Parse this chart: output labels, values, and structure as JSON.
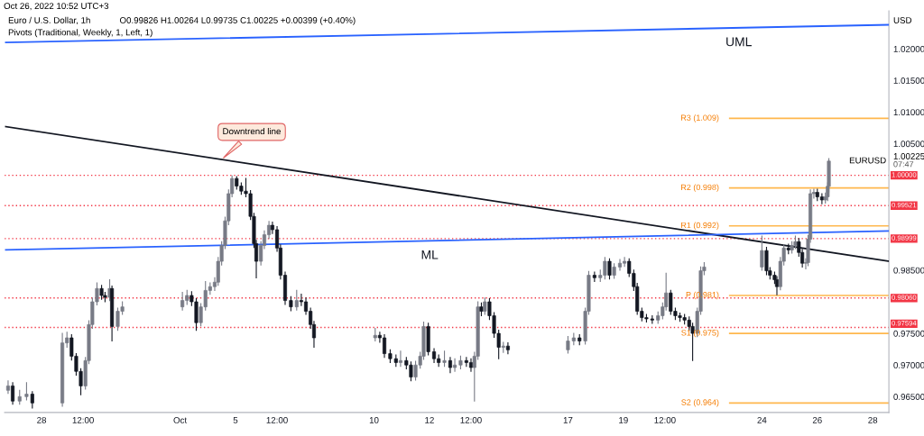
{
  "chart_data": {
    "type": "candlestick",
    "title": "Euro / U.S. Dollar, 1h",
    "subtitle": "Pivots (Traditional, Weekly, 1, Left, 1)",
    "ylabel": "USD",
    "annotations": [
      "Oct 26, 2022 10:52 UTC+3",
      "O0.99826 H1.00264 L0.99735 C1.00225 +0.00399 (+0.40%)",
      "EURUSD",
      "1.00225",
      "07:47",
      {
        "text": "Downtrend line",
        "x": "2022-10-04T12:00",
        "y": 1.0025
      }
    ],
    "x": [
      "2022-09-26T19:00",
      "2022-09-26T23:00",
      "2022-09-27T05:00",
      "2022-09-27T11:00",
      "2022-09-27T16:00",
      "2022-09-28T18:00",
      "2022-09-28T22:00",
      "2022-09-29T02:00",
      "2022-09-29T06:00",
      "2022-09-29T10:00",
      "2022-09-29T14:00",
      "2022-09-29T17:00",
      "2022-09-29T20:00",
      "2022-09-30T00:00",
      "2022-09-30T04:00",
      "2022-09-30T07:00",
      "2022-09-30T11:00",
      "2022-09-30T13:00",
      "2022-09-30T18:00",
      "2022-09-30T22:00",
      "2022-10-03T02:00",
      "2022-10-03T06:00",
      "2022-10-03T10:00",
      "2022-10-03T14:00",
      "2022-10-03T18:00",
      "2022-10-03T22:00",
      "2022-10-04T02:00",
      "2022-10-04T06:00",
      "2022-10-04T09:00",
      "2022-10-04T12:00",
      "2022-10-04T15:00",
      "2022-10-04T18:00",
      "2022-10-04T21:00",
      "2022-10-05T01:00",
      "2022-10-05T05:00",
      "2022-10-05T09:00",
      "2022-10-05T13:00",
      "2022-10-05T16:00",
      "2022-10-05T18:00",
      "2022-10-05T22:00",
      "2022-10-06T01:00",
      "2022-10-06T05:00",
      "2022-10-06T08:00",
      "2022-10-06T12:00",
      "2022-10-06T15:00",
      "2022-10-06T19:00",
      "2022-10-07T00:00",
      "2022-10-07T05:00",
      "2022-10-07T09:00",
      "2022-10-07T13:00",
      "2022-10-07T17:00",
      "2022-10-07T20:00",
      "2022-10-10T01:00",
      "2022-10-10T05:00",
      "2022-10-10T09:00",
      "2022-10-10T14:00",
      "2022-10-10T19:00",
      "2022-10-10T23:00",
      "2022-10-11T04:00",
      "2022-10-11T08:00",
      "2022-10-11T12:00",
      "2022-10-11T16:00",
      "2022-10-11T19:00",
      "2022-10-11T23:00",
      "2022-10-12T04:00",
      "2022-10-12T08:00",
      "2022-10-12T13:00",
      "2022-10-12T18:00",
      "2022-10-12T22:00",
      "2022-10-13T03:00",
      "2022-10-13T08:00",
      "2022-10-13T12:00",
      "2022-10-13T15:00",
      "2022-10-13T18:00",
      "2022-10-13T21:00",
      "2022-10-14T00:00",
      "2022-10-14T04:00",
      "2022-10-14T08:00",
      "2022-10-14T12:00",
      "2022-10-14T16:00",
      "2022-10-14T20:00",
      "2022-10-17T00:00",
      "2022-10-17T05:00",
      "2022-10-17T10:00",
      "2022-10-17T15:00",
      "2022-10-17T18:00",
      "2022-10-17T23:00",
      "2022-10-18T04:00",
      "2022-10-18T08:00",
      "2022-10-18T12:00",
      "2022-10-18T16:00",
      "2022-10-18T21:00",
      "2022-10-19T01:00",
      "2022-10-19T05:00",
      "2022-10-19T09:00",
      "2022-10-19T12:00",
      "2022-10-19T16:00",
      "2022-10-19T20:00",
      "2022-10-20T01:00",
      "2022-10-20T06:00",
      "2022-10-20T10:00",
      "2022-10-20T13:00",
      "2022-10-20T17:00",
      "2022-10-20T21:00",
      "2022-10-21T01:00",
      "2022-10-21T05:00",
      "2022-10-21T09:00",
      "2022-10-21T12:00",
      "2022-10-21T16:00",
      "2022-10-21T19:00",
      "2022-10-21T22:00",
      "2022-10-24T00:00",
      "2022-10-24T04:00",
      "2022-10-24T07:00",
      "2022-10-24T11:00",
      "2022-10-24T13:00",
      "2022-10-24T16:00",
      "2022-10-24T19:00",
      "2022-10-24T23:00",
      "2022-10-25T02:00",
      "2022-10-25T05:00",
      "2022-10-25T08:00",
      "2022-10-25T11:00",
      "2022-10-25T14:00",
      "2022-10-25T16:00",
      "2022-10-25T18:00",
      "2022-10-25T21:00",
      "2022-10-26T00:00",
      "2022-10-26T04:00",
      "2022-10-26T07:00",
      "2022-10-26T09:00",
      "2022-10-26T10:00"
    ],
    "ohlc": [
      [
        0.966,
        0.9675,
        0.9655,
        0.9667
      ],
      [
        0.9667,
        0.9672,
        0.9638,
        0.9643
      ],
      [
        0.9643,
        0.966,
        0.9638,
        0.965
      ],
      [
        0.965,
        0.9672,
        0.9645,
        0.9654
      ],
      [
        0.9654,
        0.9658,
        0.9632,
        0.964
      ],
      [
        0.964,
        0.975,
        0.9635,
        0.9735
      ],
      [
        0.9735,
        0.9752,
        0.9728,
        0.9743
      ],
      [
        0.9743,
        0.9748,
        0.9708,
        0.9714
      ],
      [
        0.9714,
        0.9718,
        0.9684,
        0.969
      ],
      [
        0.969,
        0.9694,
        0.9653,
        0.9667
      ],
      [
        0.9667,
        0.9712,
        0.9662,
        0.9707
      ],
      [
        0.9707,
        0.977,
        0.9702,
        0.9764
      ],
      [
        0.9764,
        0.9806,
        0.9758,
        0.98
      ],
      [
        0.98,
        0.983,
        0.9795,
        0.9821
      ],
      [
        0.9821,
        0.9826,
        0.9804,
        0.981
      ],
      [
        0.981,
        0.9815,
        0.98,
        0.9807
      ],
      [
        0.9807,
        0.9835,
        0.9802,
        0.9821
      ],
      [
        0.9821,
        0.9825,
        0.9738,
        0.9761
      ],
      [
        0.9761,
        0.979,
        0.9755,
        0.9785
      ],
      [
        0.9785,
        0.98,
        0.978,
        0.9792
      ],
      [
        0.9792,
        0.9815,
        0.9787,
        0.9802
      ],
      [
        0.9802,
        0.9818,
        0.9796,
        0.981
      ],
      [
        0.981,
        0.9816,
        0.9794,
        0.98
      ],
      [
        0.98,
        0.9805,
        0.9755,
        0.9767
      ],
      [
        0.9767,
        0.9797,
        0.9762,
        0.9792
      ],
      [
        0.9792,
        0.9832,
        0.9787,
        0.9818
      ],
      [
        0.9818,
        0.983,
        0.9812,
        0.9824
      ],
      [
        0.9824,
        0.9838,
        0.9818,
        0.9831
      ],
      [
        0.9831,
        0.987,
        0.9826,
        0.9864
      ],
      [
        0.9864,
        0.9895,
        0.9858,
        0.9889
      ],
      [
        0.9889,
        0.9934,
        0.9884,
        0.9928
      ],
      [
        0.9928,
        0.9977,
        0.9922,
        0.9971
      ],
      [
        0.9971,
        0.9999,
        0.9966,
        0.9995
      ],
      [
        0.9995,
        0.9998,
        0.9978,
        0.9983
      ],
      [
        0.9983,
        0.9988,
        0.997,
        0.9975
      ],
      [
        0.9975,
        0.9995,
        0.9966,
        0.9971
      ],
      [
        0.9971,
        0.9976,
        0.993,
        0.9935
      ],
      [
        0.9935,
        0.994,
        0.9886,
        0.9892
      ],
      [
        0.9892,
        0.9897,
        0.9838,
        0.9864
      ],
      [
        0.9864,
        0.9895,
        0.9858,
        0.9889
      ],
      [
        0.9889,
        0.9912,
        0.9884,
        0.9906
      ],
      [
        0.9906,
        0.9927,
        0.99,
        0.9921
      ],
      [
        0.9921,
        0.9926,
        0.9908,
        0.9914
      ],
      [
        0.9914,
        0.9919,
        0.988,
        0.9885
      ],
      [
        0.9885,
        0.989,
        0.9836,
        0.9842
      ],
      [
        0.9842,
        0.9847,
        0.9796,
        0.9802
      ],
      [
        0.9802,
        0.9808,
        0.9786,
        0.9792
      ],
      [
        0.9792,
        0.9818,
        0.9787,
        0.9802
      ],
      [
        0.9802,
        0.9812,
        0.9794,
        0.98
      ],
      [
        0.98,
        0.9806,
        0.978,
        0.9785
      ],
      [
        0.9785,
        0.979,
        0.9758,
        0.9764
      ],
      [
        0.9764,
        0.9769,
        0.9728,
        0.9743
      ],
      [
        0.9743,
        0.9758,
        0.9738,
        0.9747
      ],
      [
        0.9747,
        0.9752,
        0.9736,
        0.9743
      ],
      [
        0.9743,
        0.9748,
        0.9712,
        0.9718
      ],
      [
        0.9718,
        0.9724,
        0.9704,
        0.971
      ],
      [
        0.971,
        0.9716,
        0.9698,
        0.9704
      ],
      [
        0.9704,
        0.9722,
        0.9698,
        0.9707
      ],
      [
        0.9707,
        0.9712,
        0.9694,
        0.97
      ],
      [
        0.97,
        0.9705,
        0.9675,
        0.9681
      ],
      [
        0.9681,
        0.9706,
        0.9676,
        0.97
      ],
      [
        0.97,
        0.972,
        0.9695,
        0.9714
      ],
      [
        0.9714,
        0.9768,
        0.9709,
        0.9761
      ],
      [
        0.9761,
        0.9766,
        0.9716,
        0.9721
      ],
      [
        0.9721,
        0.9726,
        0.9704,
        0.971
      ],
      [
        0.971,
        0.9716,
        0.9698,
        0.9704
      ],
      [
        0.9704,
        0.9722,
        0.9698,
        0.9707
      ],
      [
        0.9707,
        0.9712,
        0.9688,
        0.9696
      ],
      [
        0.9696,
        0.971,
        0.969,
        0.97
      ],
      [
        0.97,
        0.9714,
        0.9694,
        0.9707
      ],
      [
        0.9707,
        0.9712,
        0.9698,
        0.9704
      ],
      [
        0.9704,
        0.971,
        0.969,
        0.9696
      ],
      [
        0.9696,
        0.972,
        0.9643,
        0.9714
      ],
      [
        0.9714,
        0.98,
        0.9709,
        0.9792
      ],
      [
        0.9792,
        0.9798,
        0.9778,
        0.9785
      ],
      [
        0.9785,
        0.9806,
        0.978,
        0.98
      ],
      [
        0.98,
        0.9805,
        0.9772,
        0.9778
      ],
      [
        0.9778,
        0.9783,
        0.9744,
        0.975
      ],
      [
        0.975,
        0.9755,
        0.971,
        0.9728
      ],
      [
        0.9728,
        0.9736,
        0.972,
        0.973
      ],
      [
        0.973,
        0.9735,
        0.9718,
        0.9724
      ],
      [
        0.9724,
        0.9745,
        0.9719,
        0.9738
      ],
      [
        0.9738,
        0.975,
        0.9732,
        0.9743
      ],
      [
        0.9743,
        0.9748,
        0.9732,
        0.9738
      ],
      [
        0.9738,
        0.979,
        0.9733,
        0.9785
      ],
      [
        0.9785,
        0.9848,
        0.978,
        0.9842
      ],
      [
        0.9842,
        0.9847,
        0.9832,
        0.9838
      ],
      [
        0.9838,
        0.985,
        0.9832,
        0.9842
      ],
      [
        0.9842,
        0.987,
        0.9836,
        0.9864
      ],
      [
        0.9864,
        0.9868,
        0.9836,
        0.9842
      ],
      [
        0.9842,
        0.986,
        0.9837,
        0.9855
      ],
      [
        0.9855,
        0.9867,
        0.985,
        0.9861
      ],
      [
        0.9861,
        0.987,
        0.9856,
        0.9864
      ],
      [
        0.9864,
        0.9868,
        0.984,
        0.9845
      ],
      [
        0.9845,
        0.985,
        0.9818,
        0.9824
      ],
      [
        0.9824,
        0.9829,
        0.978,
        0.9785
      ],
      [
        0.9785,
        0.979,
        0.977,
        0.9775
      ],
      [
        0.9775,
        0.978,
        0.9768,
        0.9773
      ],
      [
        0.9773,
        0.9778,
        0.9766,
        0.9771
      ],
      [
        0.9771,
        0.9784,
        0.9766,
        0.9778
      ],
      [
        0.9778,
        0.9798,
        0.9773,
        0.9792
      ],
      [
        0.9792,
        0.9845,
        0.9787,
        0.9814
      ],
      [
        0.9814,
        0.9818,
        0.978,
        0.9785
      ],
      [
        0.9785,
        0.979,
        0.9772,
        0.9778
      ],
      [
        0.9778,
        0.9782,
        0.9769,
        0.9775
      ],
      [
        0.9775,
        0.978,
        0.9765,
        0.9771
      ],
      [
        0.9771,
        0.9776,
        0.9755,
        0.9761
      ],
      [
        0.9761,
        0.9766,
        0.9707,
        0.975
      ],
      [
        0.975,
        0.979,
        0.9745,
        0.9785
      ],
      [
        0.9785,
        0.9855,
        0.978,
        0.9849
      ],
      [
        0.9849,
        0.9862,
        0.9843,
        0.9855
      ],
      [
        0.9855,
        0.9904,
        0.985,
        0.9881
      ],
      [
        0.9881,
        0.9886,
        0.9843,
        0.9849
      ],
      [
        0.9849,
        0.9854,
        0.9836,
        0.9842
      ],
      [
        0.9842,
        0.9847,
        0.9829,
        0.9835
      ],
      [
        0.9835,
        0.984,
        0.9811,
        0.9824
      ],
      [
        0.9824,
        0.987,
        0.9819,
        0.9864
      ],
      [
        0.9864,
        0.989,
        0.9858,
        0.9885
      ],
      [
        0.9885,
        0.9891,
        0.9876,
        0.9882
      ],
      [
        0.9882,
        0.9895,
        0.9877,
        0.9889
      ],
      [
        0.9889,
        0.9904,
        0.9884,
        0.9895
      ],
      [
        0.9895,
        0.99,
        0.9872,
        0.9878
      ],
      [
        0.9878,
        0.9883,
        0.9855,
        0.9861
      ],
      [
        0.9861,
        0.9868,
        0.9852,
        0.9862
      ],
      [
        0.9862,
        0.9905,
        0.9857,
        0.9899
      ],
      [
        0.9899,
        0.9977,
        0.9894,
        0.9971
      ],
      [
        0.9971,
        0.9978,
        0.9964,
        0.9973
      ],
      [
        0.9973,
        0.9978,
        0.996,
        0.9966
      ],
      [
        0.9966,
        0.9971,
        0.9955,
        0.9961
      ],
      [
        0.9961,
        0.9972,
        0.9956,
        0.9966
      ],
      [
        0.9966,
        0.9988,
        0.996,
        0.99826
      ],
      [
        0.99826,
        1.00264,
        0.99735,
        1.00225
      ]
    ],
    "colors": [
      "#787b86",
      "#131722",
      "#787b86",
      "#787b86",
      "#131722",
      "#787b86",
      "#787b86",
      "#131722",
      "#131722",
      "#131722",
      "#787b86",
      "#787b86",
      "#787b86",
      "#787b86",
      "#131722",
      "#131722",
      "#787b86",
      "#131722",
      "#787b86",
      "#787b86",
      "#787b86",
      "#787b86",
      "#131722",
      "#131722",
      "#787b86",
      "#787b86",
      "#787b86",
      "#787b86",
      "#787b86",
      "#787b86",
      "#787b86",
      "#787b86",
      "#787b86",
      "#131722",
      "#131722",
      "#131722",
      "#131722",
      "#131722",
      "#131722",
      "#787b86",
      "#787b86",
      "#787b86",
      "#131722",
      "#131722",
      "#131722",
      "#131722",
      "#131722",
      "#787b86",
      "#131722",
      "#131722",
      "#131722",
      "#131722",
      "#787b86",
      "#131722",
      "#131722",
      "#131722",
      "#131722",
      "#787b86",
      "#131722",
      "#131722",
      "#787b86",
      "#787b86",
      "#787b86",
      "#131722",
      "#131722",
      "#131722",
      "#787b86",
      "#131722",
      "#787b86",
      "#787b86",
      "#131722",
      "#131722",
      "#787b86",
      "#787b86",
      "#131722",
      "#787b86",
      "#131722",
      "#131722",
      "#131722",
      "#787b86",
      "#131722",
      "#787b86",
      "#787b86",
      "#131722",
      "#787b86",
      "#787b86",
      "#131722",
      "#787b86",
      "#787b86",
      "#131722",
      "#787b86",
      "#787b86",
      "#787b86",
      "#131722",
      "#131722",
      "#131722",
      "#131722",
      "#131722",
      "#131722",
      "#787b86",
      "#787b86",
      "#787b86",
      "#131722",
      "#131722",
      "#131722",
      "#131722",
      "#131722",
      "#131722",
      "#787b86",
      "#787b86",
      "#787b86",
      "#787b86",
      "#131722",
      "#131722",
      "#131722",
      "#131722",
      "#787b86",
      "#787b86",
      "#131722",
      "#787b86",
      "#787b86",
      "#131722",
      "#131722",
      "#787b86",
      "#787b86",
      "#787b86",
      "#787b86",
      "#131722",
      "#131722",
      "#787b86",
      "#787b86",
      "#787b86"
    ],
    "series": [
      {
        "type": "line",
        "color": "#131722",
        "x": [
          "2022-09-26T17:00",
          "2022-10-28T14:00"
        ],
        "values": [
          1.0077,
          0.9864
        ]
      },
      {
        "type": "line",
        "name": "ML",
        "color": "#2962ff",
        "x": [
          "2022-09-26T17:00",
          "2022-10-28T14:00"
        ],
        "values": [
          0.9882,
          0.9912
        ]
      },
      {
        "type": "line",
        "name": "UML",
        "color": "#2962ff",
        "x": [
          "2022-09-26T17:00",
          "2022-10-28T14:00"
        ],
        "values": [
          1.021,
          1.0238
        ]
      }
    ],
    "xlim": [
      "2022-09-26T16:00",
      "2022-10-28T14:00"
    ],
    "xticks": [
      {
        "value": "2022-09-28",
        "label": "28"
      },
      {
        "value": "2022-09-29T12:00",
        "label": "12:00"
      },
      {
        "value": "2022-10-03",
        "label": "Oct"
      },
      {
        "value": "2022-10-05",
        "label": "5"
      },
      {
        "value": "2022-10-06T12:00",
        "label": "12:00"
      },
      {
        "value": "2022-10-10",
        "label": "10"
      },
      {
        "value": "2022-10-12",
        "label": "12"
      },
      {
        "value": "2022-10-13T12:00",
        "label": "12:00"
      },
      {
        "value": "2022-10-17",
        "label": "17"
      },
      {
        "value": "2022-10-19",
        "label": "19"
      },
      {
        "value": "2022-10-20T12:00",
        "label": "12:00"
      },
      {
        "value": "2022-10-24",
        "label": "24"
      },
      {
        "value": "2022-10-26",
        "label": "26"
      },
      {
        "value": "2022-10-28",
        "label": "28"
      }
    ],
    "ylim": [
      0.9625,
      1.026
    ],
    "yticks": [
      {
        "value": 0.965,
        "label": "0.96500"
      },
      {
        "value": 0.97,
        "label": "0.97000"
      },
      {
        "value": 0.975,
        "label": "0.97500"
      },
      {
        "value": 0.985,
        "label": "0.98500"
      },
      {
        "value": 1.005,
        "label": "1.00500"
      },
      {
        "value": 1.01,
        "label": "1.01000"
      },
      {
        "value": 1.015,
        "label": "1.01500"
      },
      {
        "value": 1.02,
        "label": "1.02000"
      }
    ],
    "ref_lines": [
      {
        "axis": "y",
        "value": 1.0,
        "label": "1.00000",
        "color": "#f23645",
        "line_style": "dotted"
      },
      {
        "axis": "y",
        "value": 0.99521,
        "label": "0.99521",
        "color": "#f23645",
        "line_style": "dotted"
      },
      {
        "axis": "y",
        "value": 0.98999,
        "label": "0.98999",
        "color": "#f23645",
        "line_style": "dotted"
      },
      {
        "axis": "y",
        "value": 0.9806,
        "label": "0.98060",
        "color": "#f23645",
        "line_style": "dotted"
      },
      {
        "axis": "y",
        "value": 0.97594,
        "label": "0.97594",
        "color": "#f23645",
        "line_style": "dotted"
      },
      {
        "axis": "y",
        "value": 1.009,
        "label": "R3 (1.009)",
        "color": "#ffb74d",
        "line_style": "solid"
      },
      {
        "axis": "y",
        "value": 0.998,
        "label": "R2 (0.998)",
        "color": "#ffb74d",
        "line_style": "solid"
      },
      {
        "axis": "y",
        "value": 0.992,
        "label": "R1 (0.992)",
        "color": "#ffb74d",
        "line_style": "solid"
      },
      {
        "axis": "y",
        "value": 0.981,
        "label": "P (0.981)",
        "color": "#ffb74d",
        "line_style": "solid"
      },
      {
        "axis": "y",
        "value": 0.975,
        "label": "S1 (0.975)",
        "color": "#ffb74d",
        "line_style": "solid"
      },
      {
        "axis": "y",
        "value": 0.964,
        "label": "S2 (0.964)",
        "color": "#ffb74d",
        "line_style": "solid"
      }
    ],
    "grid": false,
    "legend": false
  }
}
